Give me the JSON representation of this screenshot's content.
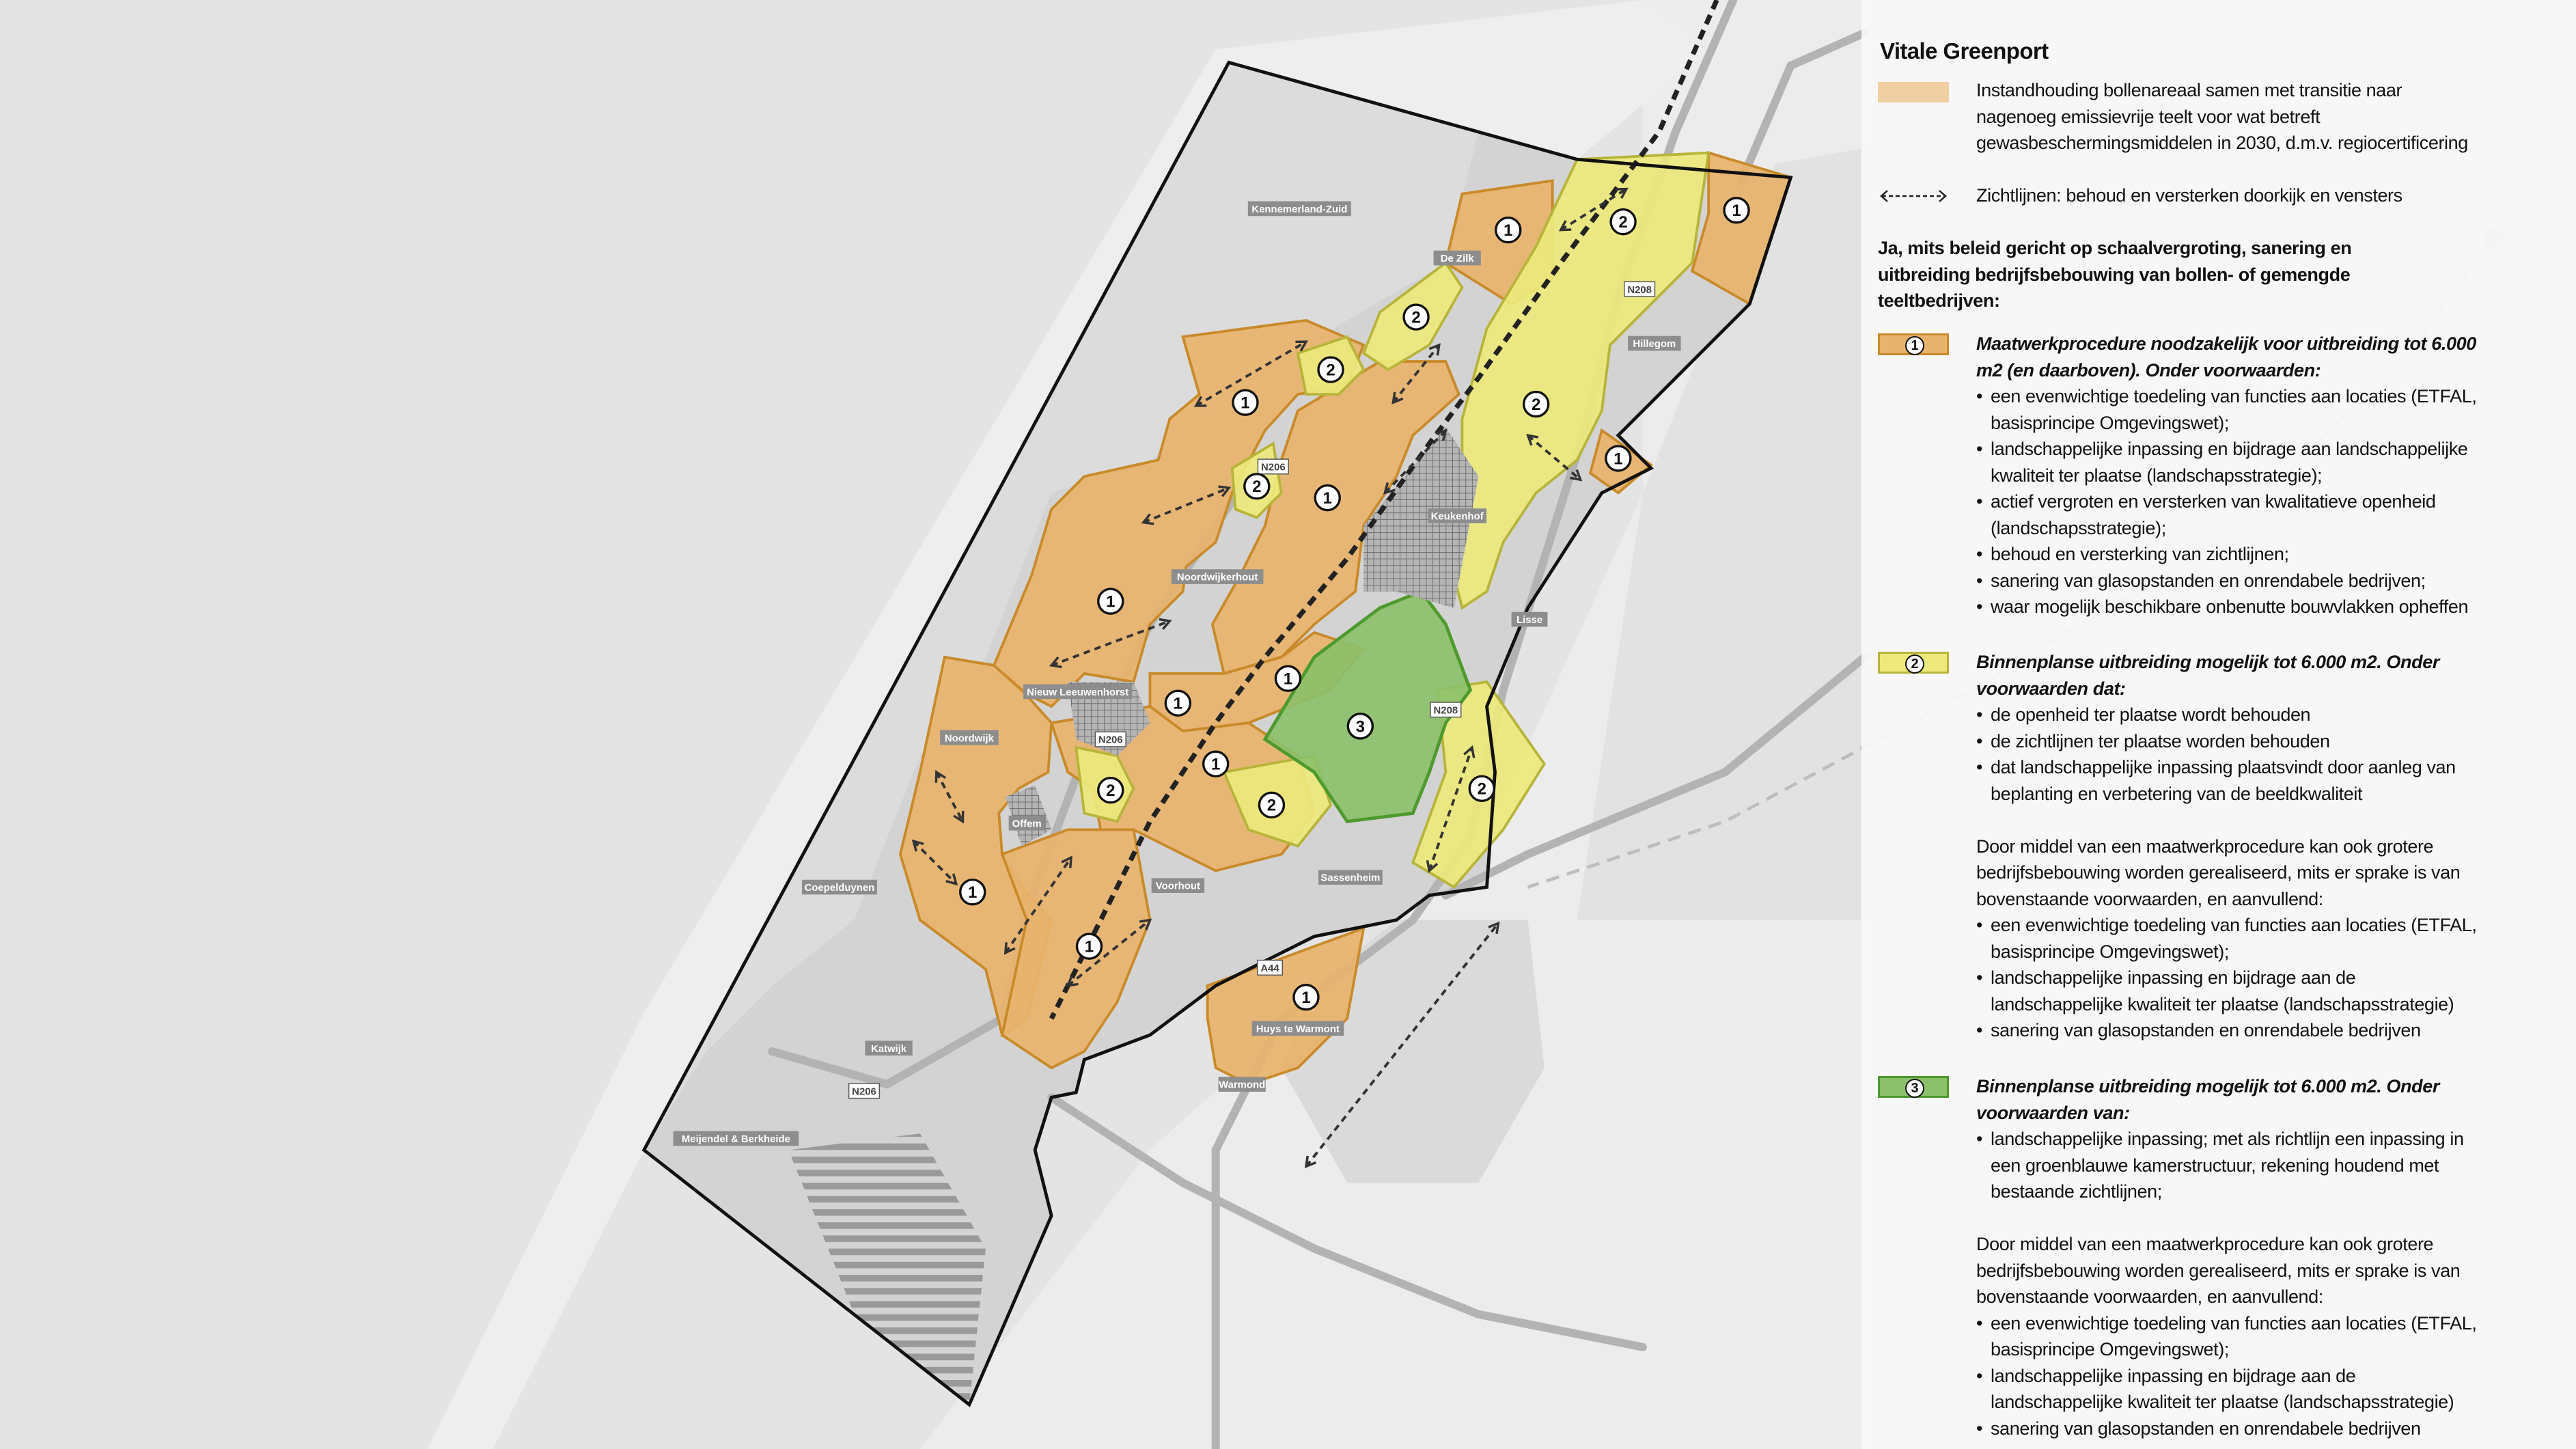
{
  "legend": {
    "title": "Vitale Greenport",
    "bollen": {
      "color": "#f0cfa3",
      "lines": [
        "Instandhouding bollenareaal samen met transitie naar",
        "nagenoeg emissievrije teelt voor wat betreft",
        "gewasbeschermingsmiddelen in 2030, d.m.v. regiocertificering"
      ]
    },
    "zicht": {
      "icon": "dashed-double-arrow-icon",
      "label": "Zichtlijnen: behoud en versterken doorkijk en vensters"
    },
    "heading_lines": [
      "Ja, mits beleid gericht op schaalvergroting, sanering en",
      "uitbreiding bedrijfsbebouwing van bollen- of gemengde",
      "teeltbedrijven:"
    ],
    "bullet_char": "•",
    "categories": [
      {
        "number": "1",
        "fill": "#e8b36c",
        "stroke": "#c98a2a",
        "title_lines": [
          "Maatwerkprocedure noodzakelijk voor uitbreiding tot 6.000",
          "m2 (en daarboven). Onder voorwaarden:"
        ],
        "bullets": [
          [
            "een evenwichtige toedeling van functies aan locaties (ETFAL,",
            "basisprincipe Omgevingswet);"
          ],
          [
            "landschappelijke inpassing en bijdrage aan landschappelijke",
            "kwaliteit ter plaatse (landschapsstrategie);"
          ],
          [
            "actief vergroten en versterken van kwalitatieve openheid",
            "(landschapsstrategie);"
          ],
          [
            "behoud en versterking van zichtlijnen;"
          ],
          [
            "sanering van glasopstanden en onrendabele bedrijven;"
          ],
          [
            "waar mogelijk beschikbare onbenutte bouwvlakken opheffen"
          ]
        ]
      },
      {
        "number": "2",
        "fill": "#ede97c",
        "stroke": "#b7b43a",
        "title_lines": [
          "Binnenplanse uitbreiding mogelijk tot 6.000 m2. Onder",
          "voorwaarden dat:"
        ],
        "bullets": [
          [
            "de openheid ter plaatse wordt behouden"
          ],
          [
            "de zichtlijnen ter plaatse worden behouden"
          ],
          [
            "dat landschappelijke inpassing plaatsvindt door aanleg van",
            "beplanting en verbetering van de beeldkwaliteit"
          ]
        ],
        "extra_lines": [
          "Door middel van een maatwerkprocedure kan ook grotere",
          "bedrijfsbebouwing worden gerealiseerd, mits er sprake is van",
          "bovenstaande voorwaarden, en aanvullend:"
        ],
        "extra_bullets": [
          [
            "een evenwichtige toedeling van functies aan locaties (ETFAL,",
            "basisprincipe Omgevingswet);"
          ],
          [
            "landschappelijke inpassing en bijdrage aan de",
            "landschappelijke kwaliteit ter plaatse (landschapsstrategie)"
          ],
          [
            "sanering van glasopstanden en onrendabele bedrijven"
          ]
        ]
      },
      {
        "number": "3",
        "fill": "#8cc06a",
        "stroke": "#4e9a2e",
        "title_lines": [
          "Binnenplanse uitbreiding mogelijk tot 6.000 m2. Onder",
          "voorwaarden van:"
        ],
        "bullets": [
          [
            "landschappelijke inpassing; met als richtlijn een inpassing in",
            "een groenblauwe kamerstructuur, rekening houdend met",
            "bestaande zichtlijnen;"
          ]
        ],
        "extra_lines": [
          "Door middel van een maatwerkprocedure kan ook grotere",
          "bedrijfsbebouwing worden gerealiseerd, mits er sprake is van",
          "bovenstaande voorwaarden, en aanvullend:"
        ],
        "extra_bullets": [
          [
            "een evenwichtige toedeling van functies aan locaties (ETFAL,",
            "basisprincipe Omgevingswet);"
          ],
          [
            "landschappelijke inpassing en bijdrage aan de",
            "landschappelijke kwaliteit ter plaatse (landschapsstrategie)"
          ],
          [
            "sanering van glasopstanden en onrendabele bedrijven"
          ]
        ]
      }
    ]
  },
  "map": {
    "places": [
      "Kennemerland-Zuid",
      "De Zilk",
      "Hillegom",
      "Keukenhof",
      "Noordwijkerhout",
      "Lisse",
      "Nieuw Leeuwenhorst",
      "Noordwijk",
      "Offem",
      "Voorhout",
      "Sassenheim",
      "Coepelduynen",
      "Katwijk",
      "Huys te Warmont",
      "Warmond",
      "Meijendel & Berkheide"
    ],
    "roads": [
      "N208",
      "N206",
      "N208",
      "N206",
      "N206",
      "A44"
    ],
    "markers": [
      "1",
      "1",
      "1",
      "1",
      "1",
      "1",
      "1",
      "1",
      "1",
      "1",
      "1",
      "1",
      "2",
      "2",
      "2",
      "2",
      "2",
      "2",
      "2",
      "2",
      "3"
    ],
    "colors": {
      "bollen": "#e8b36c",
      "binnenplans": "#ede97c",
      "groen": "#8cc06a",
      "boundary": "#111111",
      "sea": "#e4e4e4",
      "built": "#c8c8c8"
    }
  }
}
